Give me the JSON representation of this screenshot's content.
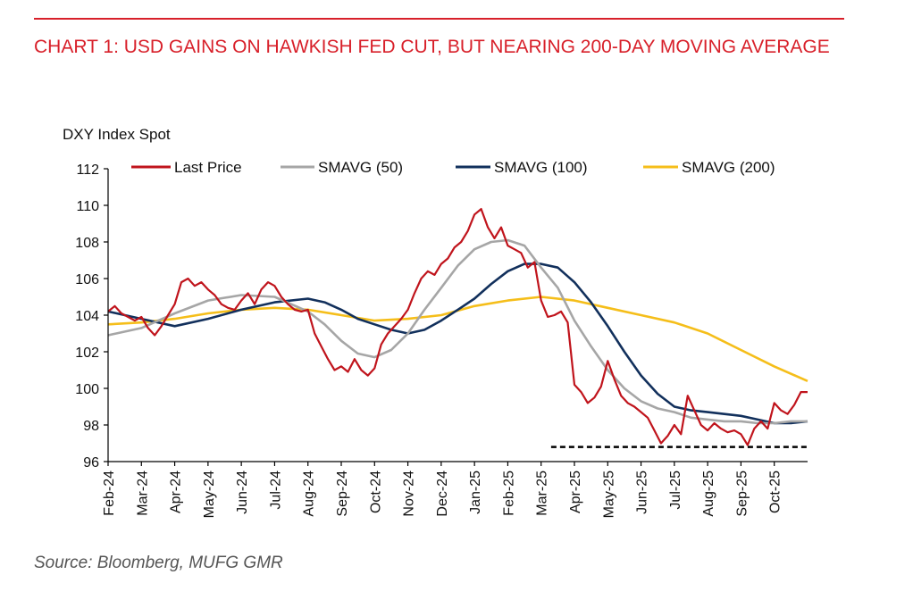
{
  "header": {
    "title": "CHART 1: USD GAINS ON HAWKISH FED CUT, BUT NEARING 200-DAY MOVING AVERAGE"
  },
  "footer": {
    "source": "Source: Bloomberg, MUFG GMR"
  },
  "colors": {
    "accent": "#d8202a",
    "last_price": "#c0141c",
    "sma50": "#a6a6a6",
    "sma100": "#12305c",
    "sma200": "#f5be1a"
  },
  "chart_data": {
    "type": "line",
    "ylabel": "DXY Index Spot",
    "ylim": [
      96,
      112
    ],
    "yticks": [
      96,
      98,
      100,
      102,
      104,
      106,
      108,
      110,
      112
    ],
    "xlim": [
      0,
      21
    ],
    "x_ticks": [
      "Feb-24",
      "Mar-24",
      "Apr-24",
      "May-24",
      "Jun-24",
      "Jul-24",
      "Aug-24",
      "Sep-24",
      "Oct-24",
      "Nov-24",
      "Dec-24",
      "Jan-25",
      "Feb-25",
      "Mar-25",
      "Apr-25",
      "May-25",
      "Jun-25",
      "Jul-25",
      "Aug-25",
      "Sep-25",
      "Oct-25"
    ],
    "grid": false,
    "legend_position": "top",
    "support_level": {
      "value": 96.8,
      "x_start": 13.3,
      "x_end": 21.0,
      "style": "dashed"
    },
    "series": [
      {
        "name": "Last Price",
        "color_key": "last_price",
        "points": [
          [
            0,
            104.2
          ],
          [
            0.2,
            104.5
          ],
          [
            0.4,
            104.1
          ],
          [
            0.6,
            103.9
          ],
          [
            0.8,
            103.7
          ],
          [
            1.0,
            103.9
          ],
          [
            1.2,
            103.3
          ],
          [
            1.4,
            102.9
          ],
          [
            1.6,
            103.4
          ],
          [
            1.8,
            104.0
          ],
          [
            2.0,
            104.6
          ],
          [
            2.2,
            105.8
          ],
          [
            2.4,
            106.0
          ],
          [
            2.6,
            105.6
          ],
          [
            2.8,
            105.8
          ],
          [
            3.0,
            105.4
          ],
          [
            3.2,
            105.1
          ],
          [
            3.4,
            104.6
          ],
          [
            3.6,
            104.4
          ],
          [
            3.8,
            104.3
          ],
          [
            4.0,
            104.8
          ],
          [
            4.2,
            105.2
          ],
          [
            4.4,
            104.6
          ],
          [
            4.6,
            105.4
          ],
          [
            4.8,
            105.8
          ],
          [
            5.0,
            105.6
          ],
          [
            5.2,
            105.0
          ],
          [
            5.4,
            104.6
          ],
          [
            5.6,
            104.3
          ],
          [
            5.8,
            104.2
          ],
          [
            6.0,
            104.3
          ],
          [
            6.2,
            103.0
          ],
          [
            6.4,
            102.3
          ],
          [
            6.6,
            101.6
          ],
          [
            6.8,
            101.0
          ],
          [
            7.0,
            101.2
          ],
          [
            7.2,
            100.9
          ],
          [
            7.4,
            101.6
          ],
          [
            7.6,
            101.0
          ],
          [
            7.8,
            100.7
          ],
          [
            8.0,
            101.1
          ],
          [
            8.2,
            102.4
          ],
          [
            8.4,
            103.0
          ],
          [
            8.6,
            103.4
          ],
          [
            8.8,
            103.8
          ],
          [
            9.0,
            104.3
          ],
          [
            9.2,
            105.2
          ],
          [
            9.4,
            106.0
          ],
          [
            9.6,
            106.4
          ],
          [
            9.8,
            106.2
          ],
          [
            10.0,
            106.8
          ],
          [
            10.2,
            107.1
          ],
          [
            10.4,
            107.7
          ],
          [
            10.6,
            108.0
          ],
          [
            10.8,
            108.6
          ],
          [
            11.0,
            109.5
          ],
          [
            11.2,
            109.8
          ],
          [
            11.4,
            108.8
          ],
          [
            11.6,
            108.2
          ],
          [
            11.8,
            108.8
          ],
          [
            12.0,
            107.8
          ],
          [
            12.2,
            107.6
          ],
          [
            12.4,
            107.4
          ],
          [
            12.6,
            106.6
          ],
          [
            12.8,
            106.9
          ],
          [
            13.0,
            104.8
          ],
          [
            13.2,
            103.9
          ],
          [
            13.4,
            104.0
          ],
          [
            13.6,
            104.2
          ],
          [
            13.8,
            103.6
          ],
          [
            14.0,
            100.2
          ],
          [
            14.2,
            99.8
          ],
          [
            14.4,
            99.2
          ],
          [
            14.6,
            99.5
          ],
          [
            14.8,
            100.1
          ],
          [
            15.0,
            101.5
          ],
          [
            15.2,
            100.5
          ],
          [
            15.4,
            99.6
          ],
          [
            15.6,
            99.2
          ],
          [
            15.8,
            99.0
          ],
          [
            16.0,
            98.7
          ],
          [
            16.2,
            98.4
          ],
          [
            16.4,
            97.7
          ],
          [
            16.6,
            97.0
          ],
          [
            16.8,
            97.4
          ],
          [
            17.0,
            98.0
          ],
          [
            17.2,
            97.5
          ],
          [
            17.4,
            99.6
          ],
          [
            17.6,
            98.8
          ],
          [
            17.8,
            98.0
          ],
          [
            18.0,
            97.7
          ],
          [
            18.2,
            98.1
          ],
          [
            18.4,
            97.8
          ],
          [
            18.6,
            97.6
          ],
          [
            18.8,
            97.7
          ],
          [
            19.0,
            97.5
          ],
          [
            19.2,
            96.9
          ],
          [
            19.4,
            97.8
          ],
          [
            19.6,
            98.2
          ],
          [
            19.8,
            97.8
          ],
          [
            20.0,
            99.2
          ],
          [
            20.2,
            98.8
          ],
          [
            20.4,
            98.6
          ],
          [
            20.6,
            99.1
          ],
          [
            20.8,
            99.8
          ],
          [
            21.0,
            99.8
          ]
        ]
      },
      {
        "name": "SMAVG (50)",
        "color_key": "sma50",
        "points": [
          [
            0,
            102.9
          ],
          [
            1.0,
            103.3
          ],
          [
            2.0,
            104.1
          ],
          [
            3.0,
            104.8
          ],
          [
            4.0,
            105.1
          ],
          [
            5.0,
            105.0
          ],
          [
            6.0,
            104.2
          ],
          [
            6.5,
            103.5
          ],
          [
            7.0,
            102.6
          ],
          [
            7.5,
            101.9
          ],
          [
            8.0,
            101.7
          ],
          [
            8.5,
            102.1
          ],
          [
            9.0,
            103.0
          ],
          [
            9.5,
            104.3
          ],
          [
            10.0,
            105.5
          ],
          [
            10.5,
            106.7
          ],
          [
            11.0,
            107.6
          ],
          [
            11.5,
            108.0
          ],
          [
            12.0,
            108.1
          ],
          [
            12.5,
            107.8
          ],
          [
            13.0,
            106.6
          ],
          [
            13.5,
            105.5
          ],
          [
            14.0,
            103.7
          ],
          [
            14.5,
            102.3
          ],
          [
            15.0,
            101.0
          ],
          [
            15.5,
            100.0
          ],
          [
            16.0,
            99.3
          ],
          [
            16.5,
            98.9
          ],
          [
            17.0,
            98.7
          ],
          [
            17.5,
            98.4
          ],
          [
            18.0,
            98.3
          ],
          [
            18.5,
            98.2
          ],
          [
            19.0,
            98.2
          ],
          [
            19.5,
            98.1
          ],
          [
            20.0,
            98.1
          ],
          [
            20.5,
            98.2
          ],
          [
            21.0,
            98.2
          ]
        ]
      },
      {
        "name": "SMAVG (100)",
        "color_key": "sma100",
        "points": [
          [
            0,
            104.2
          ],
          [
            1.0,
            103.8
          ],
          [
            2.0,
            103.4
          ],
          [
            3.0,
            103.8
          ],
          [
            4.0,
            104.3
          ],
          [
            5.0,
            104.7
          ],
          [
            6.0,
            104.9
          ],
          [
            6.5,
            104.7
          ],
          [
            7.0,
            104.3
          ],
          [
            7.5,
            103.8
          ],
          [
            8.0,
            103.5
          ],
          [
            8.5,
            103.2
          ],
          [
            9.0,
            103.0
          ],
          [
            9.5,
            103.2
          ],
          [
            10.0,
            103.7
          ],
          [
            10.5,
            104.3
          ],
          [
            11.0,
            104.9
          ],
          [
            11.5,
            105.7
          ],
          [
            12.0,
            106.4
          ],
          [
            12.5,
            106.8
          ],
          [
            13.0,
            106.8
          ],
          [
            13.5,
            106.6
          ],
          [
            14.0,
            105.8
          ],
          [
            14.5,
            104.7
          ],
          [
            15.0,
            103.4
          ],
          [
            15.5,
            102.0
          ],
          [
            16.0,
            100.7
          ],
          [
            16.5,
            99.7
          ],
          [
            17.0,
            99.0
          ],
          [
            17.5,
            98.8
          ],
          [
            18.0,
            98.7
          ],
          [
            18.5,
            98.6
          ],
          [
            19.0,
            98.5
          ],
          [
            19.5,
            98.3
          ],
          [
            20.0,
            98.1
          ],
          [
            20.5,
            98.1
          ],
          [
            21.0,
            98.2
          ]
        ]
      },
      {
        "name": "SMAVG (200)",
        "color_key": "sma200",
        "points": [
          [
            0,
            103.5
          ],
          [
            1.0,
            103.6
          ],
          [
            2.0,
            103.8
          ],
          [
            3.0,
            104.1
          ],
          [
            4.0,
            104.3
          ],
          [
            5.0,
            104.4
          ],
          [
            6.0,
            104.3
          ],
          [
            7.0,
            104.0
          ],
          [
            8.0,
            103.7
          ],
          [
            9.0,
            103.8
          ],
          [
            10.0,
            104.0
          ],
          [
            11.0,
            104.5
          ],
          [
            12.0,
            104.8
          ],
          [
            13.0,
            105.0
          ],
          [
            14.0,
            104.8
          ],
          [
            15.0,
            104.4
          ],
          [
            16.0,
            104.0
          ],
          [
            17.0,
            103.6
          ],
          [
            18.0,
            103.0
          ],
          [
            19.0,
            102.1
          ],
          [
            20.0,
            101.2
          ],
          [
            21.0,
            100.4
          ]
        ]
      }
    ]
  }
}
